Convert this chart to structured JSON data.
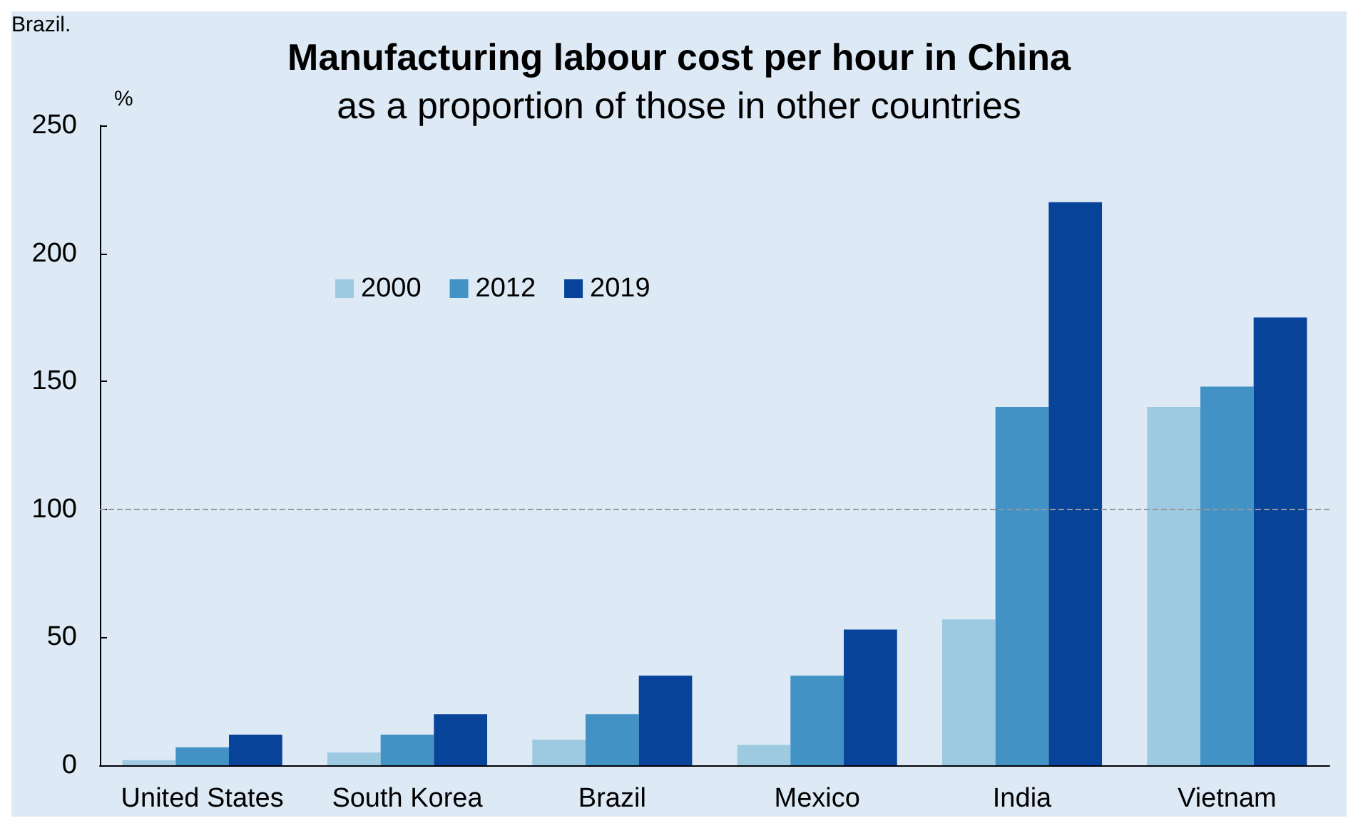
{
  "chart_data": {
    "type": "bar",
    "title": "Manufacturing labour cost per hour in China",
    "subtitle": "as a proportion of those in other countries",
    "ylabel": "%",
    "annotations": [
      "Brazil."
    ],
    "categories": [
      "United States",
      "South Korea",
      "Brazil",
      "Mexico",
      "India",
      "Vietnam"
    ],
    "series": [
      {
        "name": "2000",
        "color": "#9ecae1",
        "values": [
          2,
          5,
          10,
          8,
          57,
          140
        ]
      },
      {
        "name": "2012",
        "color": "#4292c6",
        "values": [
          7,
          12,
          20,
          35,
          140,
          148
        ]
      },
      {
        "name": "2019",
        "color": "#08439a",
        "values": [
          12,
          20,
          35,
          53,
          220,
          175
        ]
      }
    ],
    "ylim": [
      0,
      250
    ],
    "yticks": [
      0,
      50,
      100,
      150,
      200,
      250
    ],
    "grid": false,
    "legend": "top left",
    "ref_lines": [
      {
        "axis": "y",
        "value": 100,
        "color": "#999999",
        "line_style": "dashed"
      }
    ]
  }
}
